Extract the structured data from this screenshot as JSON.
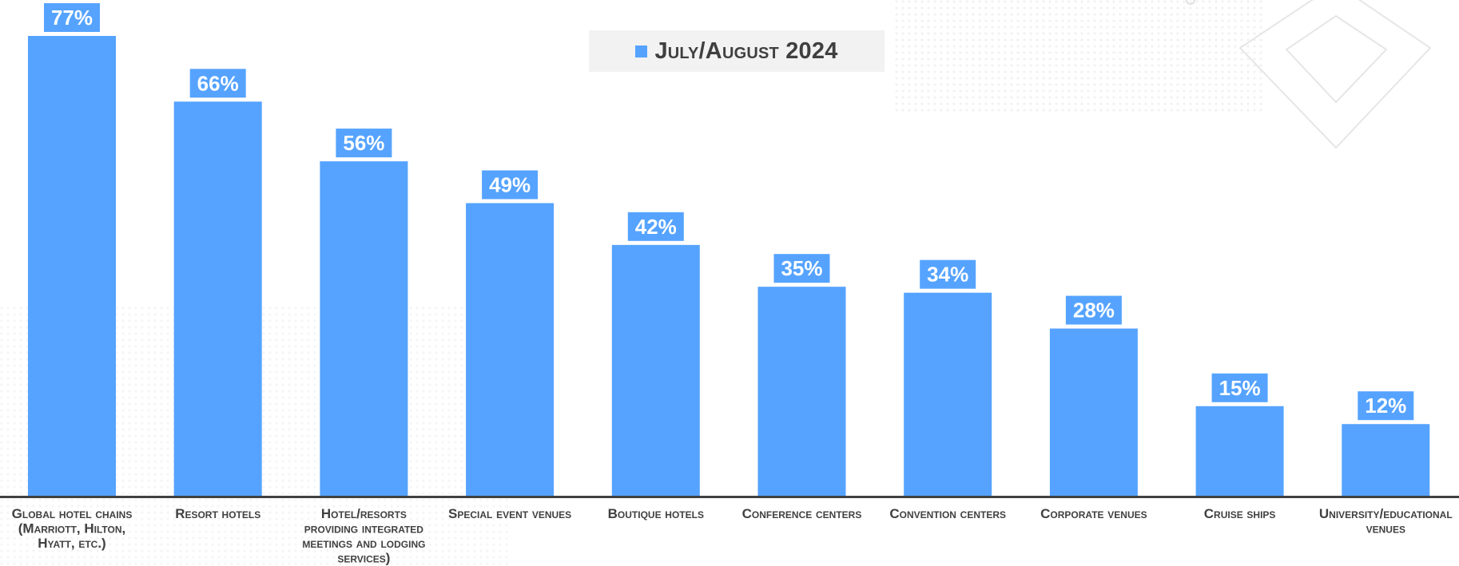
{
  "chart_data": {
    "type": "bar",
    "categories": [
      "Global hotel chains (Marriott, Hilton, Hyatt, etc.)",
      "Resort hotels",
      "Hotel/resorts providing integrated meetings and lodging services)",
      "Special event venues",
      "Boutique hotels",
      "Conference centers",
      "Convention centers",
      "Corporate venues",
      "Cruise ships",
      "University/educational venues"
    ],
    "category_lines": [
      [
        "Global hotel chains",
        "(Marriott, Hilton,",
        "Hyatt, etc.)"
      ],
      [
        "Resort hotels"
      ],
      [
        "Hotel/resorts",
        "providing integrated",
        "meetings and lodging",
        "services)"
      ],
      [
        "Special event venues"
      ],
      [
        "Boutique hotels"
      ],
      [
        "Conference centers"
      ],
      [
        "Convention centers"
      ],
      [
        "Corporate venues"
      ],
      [
        "Cruise ships"
      ],
      [
        "University/educational",
        "venues"
      ]
    ],
    "series": [
      {
        "name": "July/August 2024",
        "values": [
          77,
          66,
          56,
          49,
          42,
          35,
          34,
          28,
          15,
          12
        ]
      }
    ],
    "data_labels": [
      "77%",
      "66%",
      "56%",
      "49%",
      "42%",
      "35%",
      "34%",
      "28%",
      "15%",
      "12%"
    ],
    "ylim": [
      0,
      77
    ],
    "grid": false,
    "legend_position": "top-center",
    "colors": {
      "bar": "#55a3ff",
      "label_bg": "#55a3ff",
      "label_text": "#ffffff",
      "axis": "#404040",
      "category_text": "#404040",
      "legend_bg": "#f2f2f2",
      "legend_text": "#3f3f3f"
    }
  }
}
